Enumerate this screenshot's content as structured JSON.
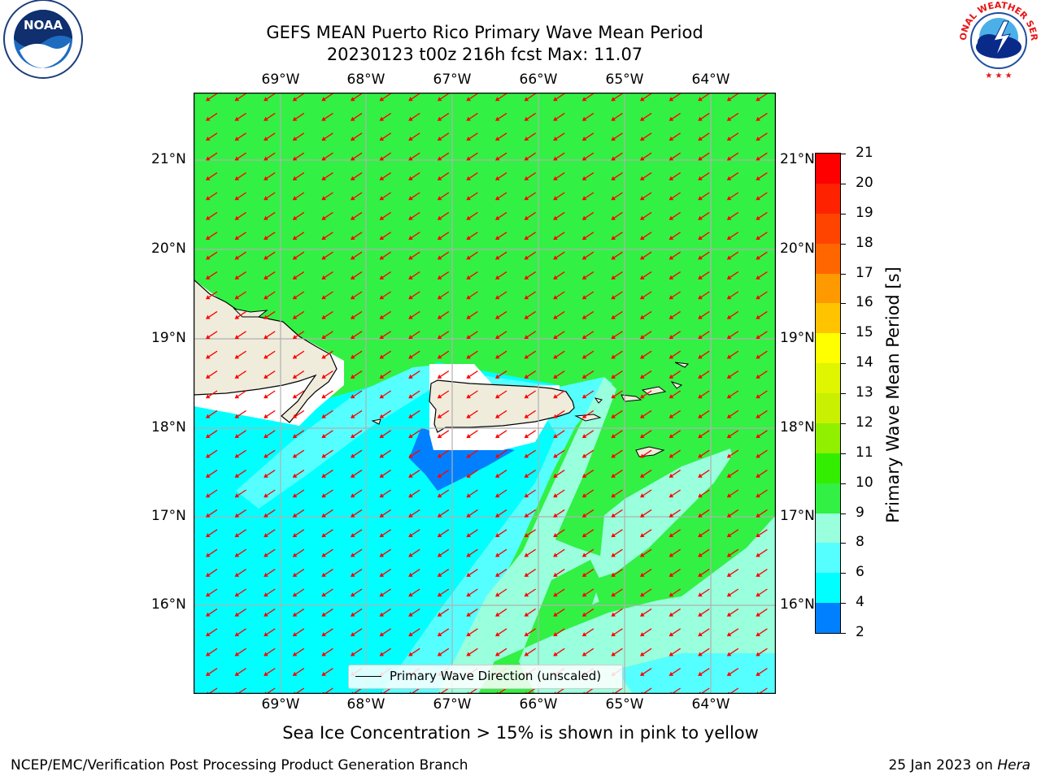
{
  "title": {
    "line1": "GEFS MEAN Puerto Rico Primary Wave Mean Period",
    "line2": "20230123 t00z 216h fcst   Max: 11.07"
  },
  "logos": {
    "left": "NOAA",
    "right": "NATIONAL WEATHER SERVICE"
  },
  "lon_labels": [
    "69°W",
    "68°W",
    "67°W",
    "66°W",
    "65°W",
    "64°W"
  ],
  "lat_labels": [
    "21°N",
    "20°N",
    "19°N",
    "18°N",
    "17°N",
    "16°N"
  ],
  "legend": {
    "label": "Primary Wave Direction (unscaled)"
  },
  "colorbar": {
    "label": "Primary Wave Mean Period [s]",
    "ticks": [
      "21",
      "20",
      "19",
      "18",
      "17",
      "16",
      "15",
      "14",
      "13",
      "12",
      "11",
      "10",
      "9",
      "8",
      "6",
      "4",
      "2"
    ],
    "colors": [
      "#ff0000",
      "#ff2200",
      "#ff4400",
      "#ff6600",
      "#ff9900",
      "#ffc300",
      "#ffff00",
      "#e0f500",
      "#c8f000",
      "#90f000",
      "#33ee00",
      "#33f044",
      "#99ffdd",
      "#55ffff",
      "#00ffff",
      "#0080ff",
      "#0000ff"
    ]
  },
  "caption": "Sea Ice Concentration > 15% is shown in pink to yellow",
  "footer": {
    "left": "NCEP/EMC/Verification Post Processing Product Generation Branch",
    "right_date": "25 Jan 2023 on ",
    "right_host": "Hera"
  },
  "map": {
    "lon_range": [
      -70,
      -63.25
    ],
    "lat_range": [
      15.05,
      21.75
    ],
    "wave_direction": "from northeast",
    "palette": {
      "green": "#33f044",
      "light_cyan": "#55ffff",
      "aqua": "#99ffdd",
      "cyan": "#00ffff",
      "blue": "#0080ff",
      "land": "#efecdc",
      "arrow": "#ff0000"
    }
  }
}
